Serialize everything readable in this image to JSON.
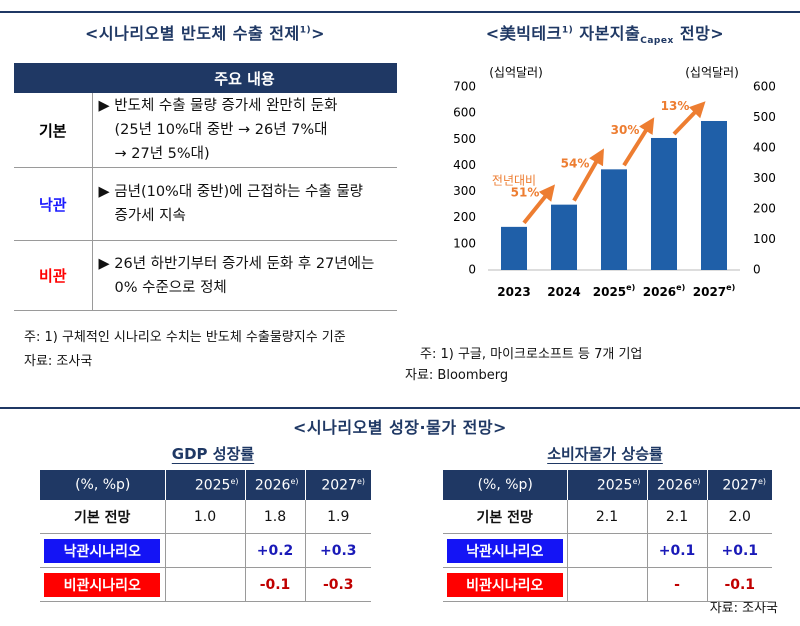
{
  "top_left": {
    "title": "<시나리오별 반도체 수출 전제",
    "title_sup": "1)",
    "title_end": ">",
    "header": "주요 내용",
    "rows": [
      {
        "label": "기본",
        "lines": [
          "▶ 반도체 수출 물량 증가세 완만히 둔화",
          "(25년 10%대 중반 → 26년 7%대",
          "→ 27년 5%대)"
        ]
      },
      {
        "label": "낙관",
        "lines": [
          "▶ 금년(10%대 중반)에 근접하는 수출 물량",
          "증가세 지속"
        ]
      },
      {
        "label": "비관",
        "lines": [
          "▶ 26년 하반기부터 증가세 둔화 후 27년에는",
          "0% 수준으로 정체"
        ]
      }
    ],
    "note": "주: 1) 구체적인 시나리오 수치는 반도체 수출물량지수 기준",
    "source": "자료: 조사국"
  },
  "chart_data": {
    "type": "bar",
    "title": "<美빅테크",
    "title_sup": "1)",
    "title_mid": "자본지출",
    "title_sub": "Capex",
    "title_end": "전망>",
    "y_label": "(십억달러)",
    "y2_label": "(십억달러)",
    "categories": [
      "2023",
      "2024",
      "2025",
      "2026",
      "2027"
    ],
    "category_notes": [
      null,
      null,
      "e)",
      "e)",
      "e)"
    ],
    "values": [
      165,
      250,
      385,
      505,
      570
    ],
    "color": "#1f5fa8",
    "ylim": [
      0,
      700
    ],
    "yticks": [
      0,
      100,
      200,
      300,
      400,
      500,
      600,
      700
    ],
    "y2lim": [
      0,
      600
    ],
    "y2ticks": [
      0,
      100,
      200,
      300,
      400,
      500,
      600
    ],
    "annotation": "전년대비",
    "growth_labels": [
      "51%",
      "54%",
      "30%",
      "13%"
    ],
    "arrow_color": "#ed7d31",
    "note": "주: 1) 구글, 마이크로소프트 등 7개 기업",
    "source": "자료: Bloomberg"
  },
  "bottom": {
    "title": "<시나리오별 성장·물가 전망>",
    "tables": [
      {
        "title": "GDP 성장률",
        "header": [
          "(%, %p)",
          "2025",
          "2026",
          "2027"
        ],
        "header_notes": [
          null,
          "e)",
          "e)",
          "e)"
        ],
        "rows": [
          [
            "기본 전망",
            "1.0",
            "1.8",
            "1.9"
          ],
          [
            "낙관시나리오",
            null,
            "+0.2",
            "+0.3"
          ],
          [
            "비관시나리오",
            null,
            "-0.1",
            "-0.3"
          ]
        ]
      },
      {
        "title": "소비자물가 상승률",
        "header": [
          "(%, %p)",
          "2025",
          "2026",
          "2027"
        ],
        "header_notes": [
          null,
          "e)",
          "e)",
          "e)"
        ],
        "rows": [
          [
            "기본 전망",
            "2.1",
            "2.1",
            "2.0"
          ],
          [
            "낙관시나리오",
            null,
            "+0.1",
            "+0.1"
          ],
          [
            "비관시나리오",
            null,
            "-",
            "-0.1"
          ]
        ]
      }
    ],
    "source": "자료: 조사국"
  }
}
